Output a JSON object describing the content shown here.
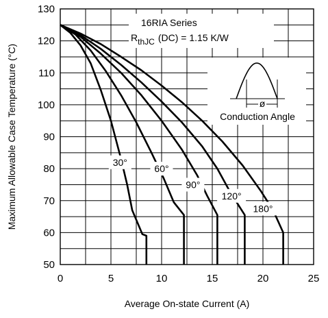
{
  "chart_data": {
    "type": "line",
    "annotation_lines": [
      "16RIA Series",
      "R",
      "thJC",
      "(DC) = 1.15 K/W"
    ],
    "inset_label": "Conduction Angle",
    "inset_symbol": "ø",
    "xlabel": "Average On-state Current (A)",
    "ylabel": "Maximum Allowable Case Temperature (°C)",
    "xlim": [
      0,
      25
    ],
    "ylim": [
      50,
      130
    ],
    "x_ticks": [
      0,
      5,
      10,
      15,
      20,
      25
    ],
    "y_ticks": [
      50,
      60,
      70,
      80,
      90,
      100,
      110,
      120,
      130
    ],
    "grid": true,
    "series": [
      {
        "name": "30°",
        "points": [
          [
            0,
            125
          ],
          [
            1,
            122.5
          ],
          [
            2,
            118.6
          ],
          [
            3,
            113
          ],
          [
            4,
            104.6
          ],
          [
            5,
            95
          ],
          [
            6,
            83
          ],
          [
            6.6,
            75
          ],
          [
            7.1,
            67
          ],
          [
            8.1,
            59.5
          ],
          [
            8.5,
            59
          ],
          [
            8.5,
            50
          ]
        ]
      },
      {
        "name": "60°",
        "points": [
          [
            0,
            125
          ],
          [
            1.5,
            122
          ],
          [
            3,
            117
          ],
          [
            4.5,
            110.5
          ],
          [
            6,
            103
          ],
          [
            7.5,
            94.5
          ],
          [
            9,
            85
          ],
          [
            10.2,
            77
          ],
          [
            11.2,
            69.5
          ],
          [
            12.2,
            65.5
          ],
          [
            12.2,
            50
          ]
        ]
      },
      {
        "name": "90°",
        "points": [
          [
            0,
            125
          ],
          [
            2,
            121.3
          ],
          [
            4,
            116
          ],
          [
            6,
            110
          ],
          [
            8,
            103
          ],
          [
            10,
            95
          ],
          [
            12,
            86
          ],
          [
            13.5,
            78
          ],
          [
            14.5,
            71.5
          ],
          [
            15.5,
            65.5
          ],
          [
            15.5,
            50
          ]
        ]
      },
      {
        "name": "120°",
        "points": [
          [
            0,
            125
          ],
          [
            2,
            121.8
          ],
          [
            4,
            117.5
          ],
          [
            6,
            112.5
          ],
          [
            8,
            107
          ],
          [
            10,
            101
          ],
          [
            12,
            94.5
          ],
          [
            14,
            87
          ],
          [
            15.5,
            80
          ],
          [
            16.8,
            72.5
          ],
          [
            18.2,
            65.5
          ],
          [
            18.2,
            50
          ]
        ]
      },
      {
        "name": "180°",
        "points": [
          [
            0,
            125
          ],
          [
            2,
            122.3
          ],
          [
            4,
            119
          ],
          [
            6,
            115
          ],
          [
            8,
            110.8
          ],
          [
            10,
            106
          ],
          [
            12,
            100.8
          ],
          [
            14,
            95
          ],
          [
            16,
            88.5
          ],
          [
            18,
            81
          ],
          [
            19.8,
            73
          ],
          [
            21,
            67
          ],
          [
            22,
            60
          ],
          [
            22,
            50
          ]
        ]
      }
    ]
  }
}
